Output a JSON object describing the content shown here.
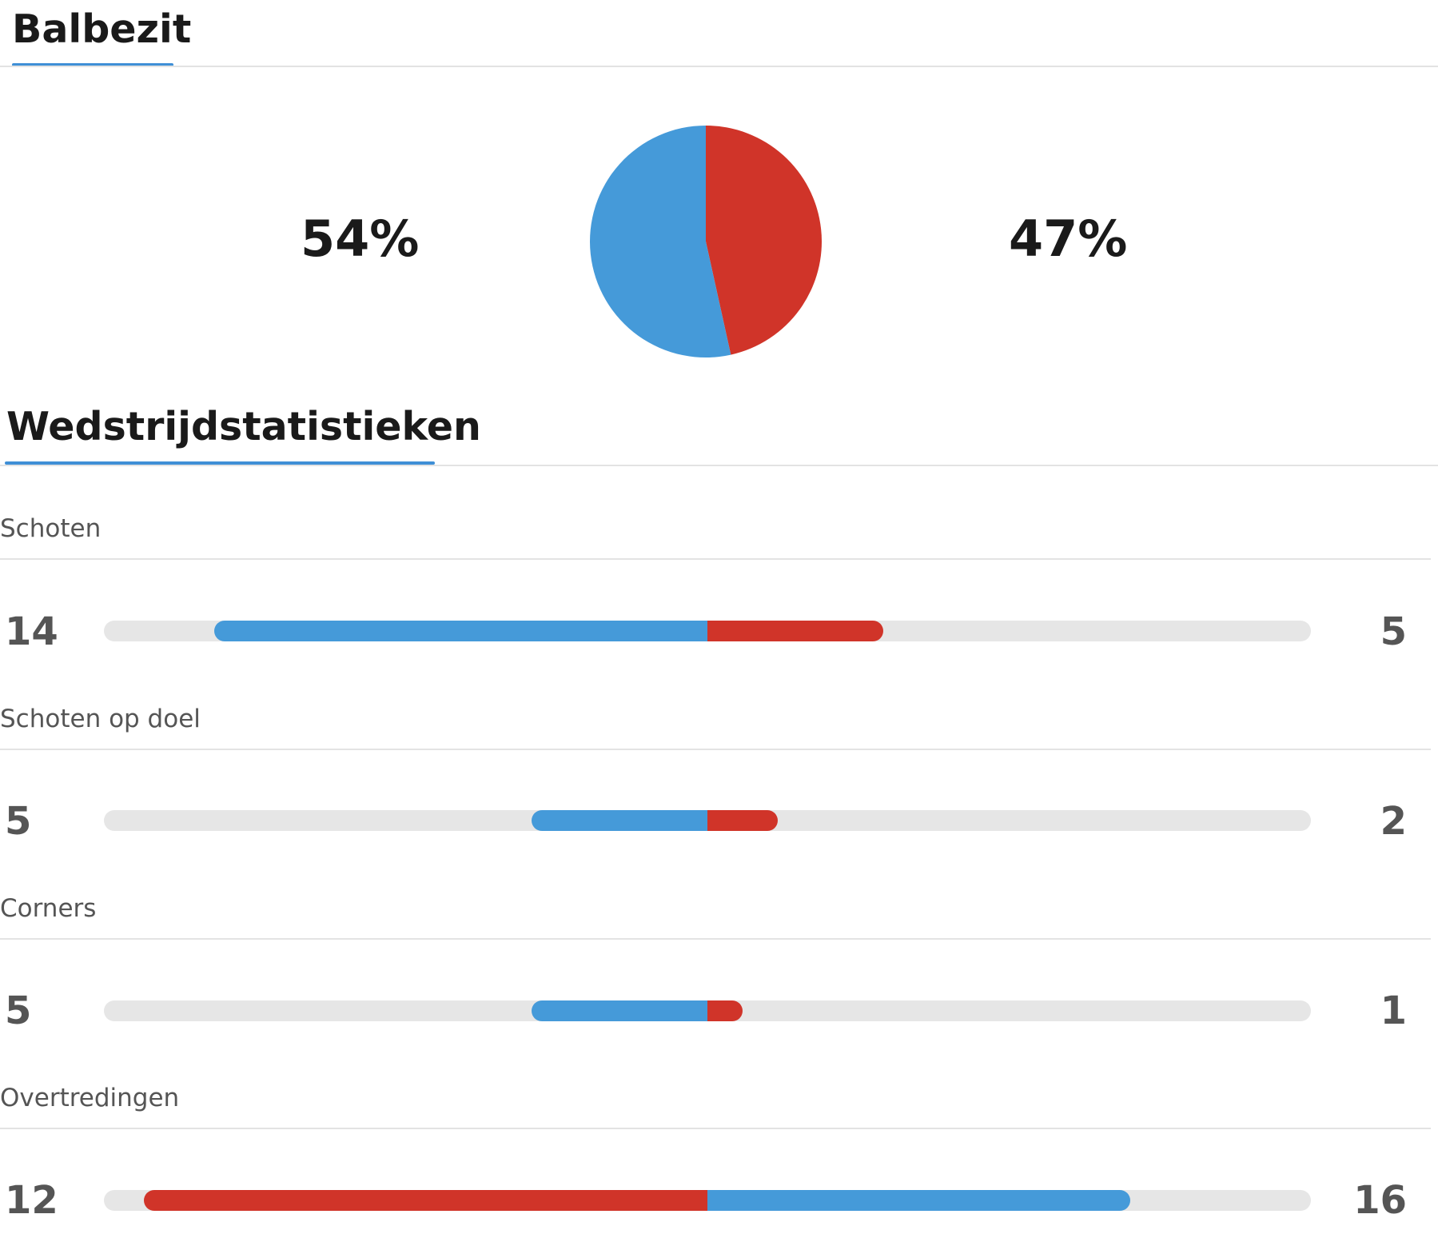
{
  "sections": {
    "possession_title": "Balbezit",
    "stats_title": "Wedstrijdstatistieken"
  },
  "possession": {
    "home_label": "54%",
    "away_label": "47%"
  },
  "colors": {
    "home": "#459ad9",
    "away": "#d03429",
    "track": "#e6e6e6",
    "accent": "#3f8fd6"
  },
  "stats": [
    {
      "label": "Schoten",
      "home": "14",
      "away": "5"
    },
    {
      "label": "Schoten op doel",
      "home": "5",
      "away": "2"
    },
    {
      "label": "Corners",
      "home": "5",
      "away": "1"
    },
    {
      "label": "Overtredingen",
      "home": "12",
      "away": "16"
    }
  ],
  "chart_data": [
    {
      "type": "pie",
      "title": "Balbezit",
      "categories": [
        "home",
        "away"
      ],
      "values": [
        54,
        47
      ],
      "colors": [
        "#459ad9",
        "#d03429"
      ]
    },
    {
      "type": "bar",
      "title": "Wedstrijdstatistieken",
      "categories": [
        "Schoten",
        "Schoten op doel",
        "Corners",
        "Overtredingen"
      ],
      "series": [
        {
          "values": [
            14,
            5,
            5,
            12
          ]
        },
        {
          "values": [
            5,
            2,
            1,
            16
          ]
        }
      ]
    }
  ]
}
